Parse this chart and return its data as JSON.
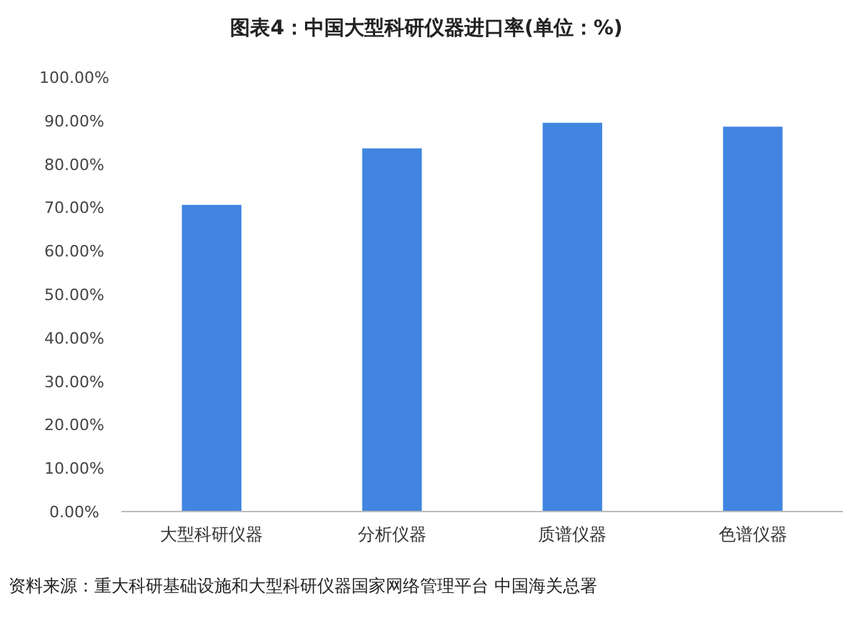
{
  "chart_data": {
    "type": "bar",
    "title": "图表4：中国大型科研仪器进口率(单位：%)",
    "categories": [
      "大型科研仪器",
      "分析仪器",
      "质谱仪器",
      "色谱仪器"
    ],
    "values": [
      70.6,
      83.6,
      89.5,
      88.6
    ],
    "color": "#4185e0",
    "ylim": [
      0,
      100
    ],
    "yticks": [
      {
        "value": 0,
        "label": "0.00%"
      },
      {
        "value": 10,
        "label": "10.00%"
      },
      {
        "value": 20,
        "label": "20.00%"
      },
      {
        "value": 30,
        "label": "30.00%"
      },
      {
        "value": 40,
        "label": "40.00%"
      },
      {
        "value": 50,
        "label": "50.00%"
      },
      {
        "value": 60,
        "label": "60.00%"
      },
      {
        "value": 70,
        "label": "70.00%"
      },
      {
        "value": 80,
        "label": "80.00%"
      },
      {
        "value": 90,
        "label": "90.00%"
      },
      {
        "value": 100,
        "label": "100.00%"
      }
    ],
    "grid": false,
    "annotations": [
      "资料来源：重大科研基础设施和大型科研仪器国家网络管理平台 中国海关总署"
    ]
  }
}
